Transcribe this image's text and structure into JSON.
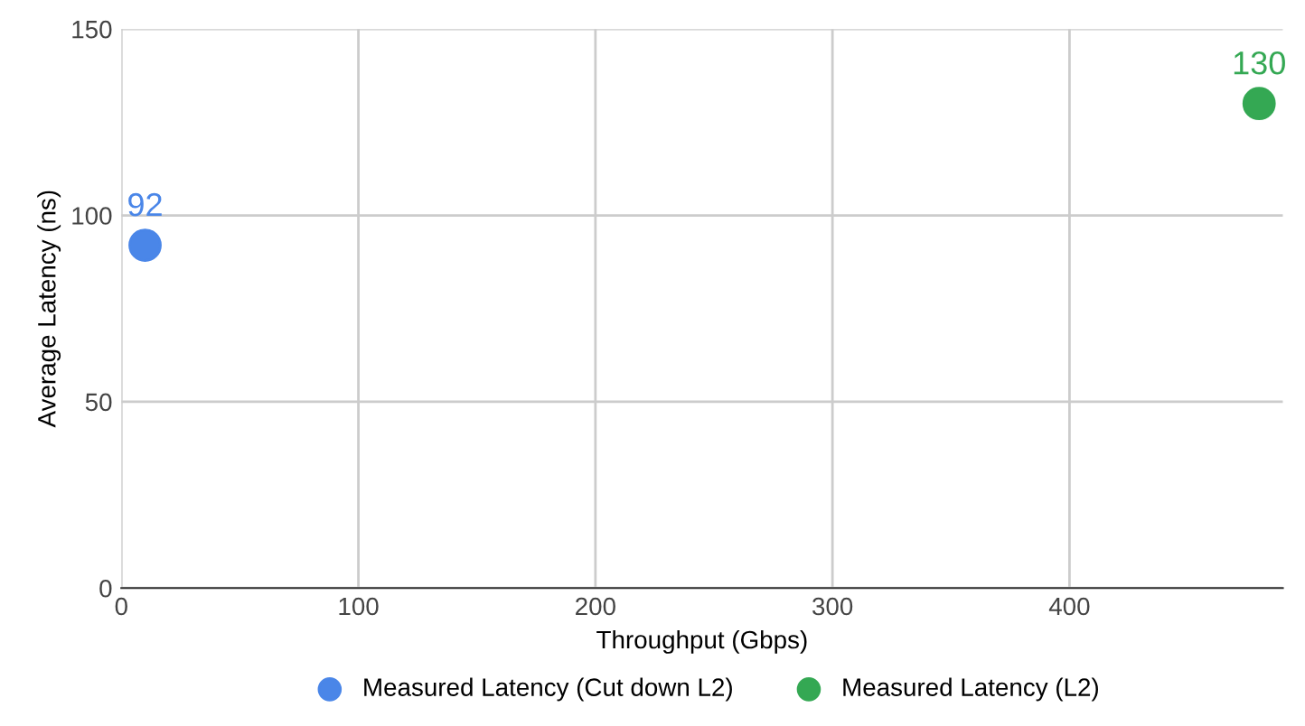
{
  "chart_data": {
    "type": "scatter",
    "xlabel": "Throughput (Gbps)",
    "ylabel": "Average Latency (ns)",
    "series": [
      {
        "name": "Measured Latency (Cut down L2)",
        "color": "#4a86e8",
        "x": [
          10
        ],
        "values": [
          92
        ]
      },
      {
        "name": "Measured Latency (L2)",
        "color": "#34a853",
        "x": [
          480
        ],
        "values": [
          130
        ]
      }
    ],
    "xlim": [
      0,
      490
    ],
    "xticks": [
      0,
      100,
      200,
      300,
      400
    ],
    "ylim": [
      0,
      150
    ],
    "yticks": [
      0,
      50,
      100,
      150
    ],
    "grid": true,
    "legend": "bottom",
    "data_labels": true,
    "marker": "circle"
  }
}
